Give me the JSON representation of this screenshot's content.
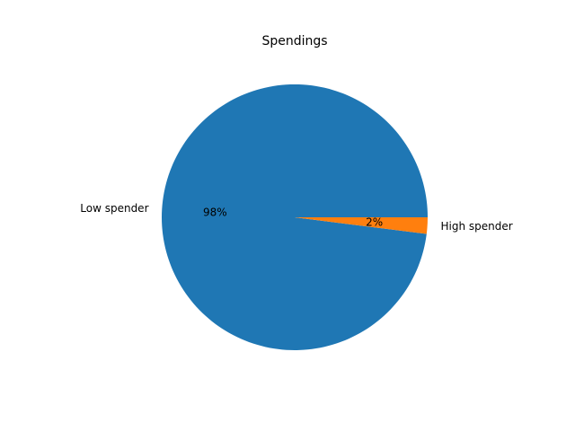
{
  "chart_data": {
    "type": "pie",
    "title": "Spendings",
    "slices": [
      {
        "label": "Low spender",
        "value": 98,
        "pct_label": "98%",
        "color": "#1f77b4"
      },
      {
        "label": "High spender",
        "value": 2,
        "pct_label": "2%",
        "color": "#ff7f0e"
      }
    ],
    "start_angle": 0,
    "direction": "counterclockwise",
    "legend": "none"
  }
}
